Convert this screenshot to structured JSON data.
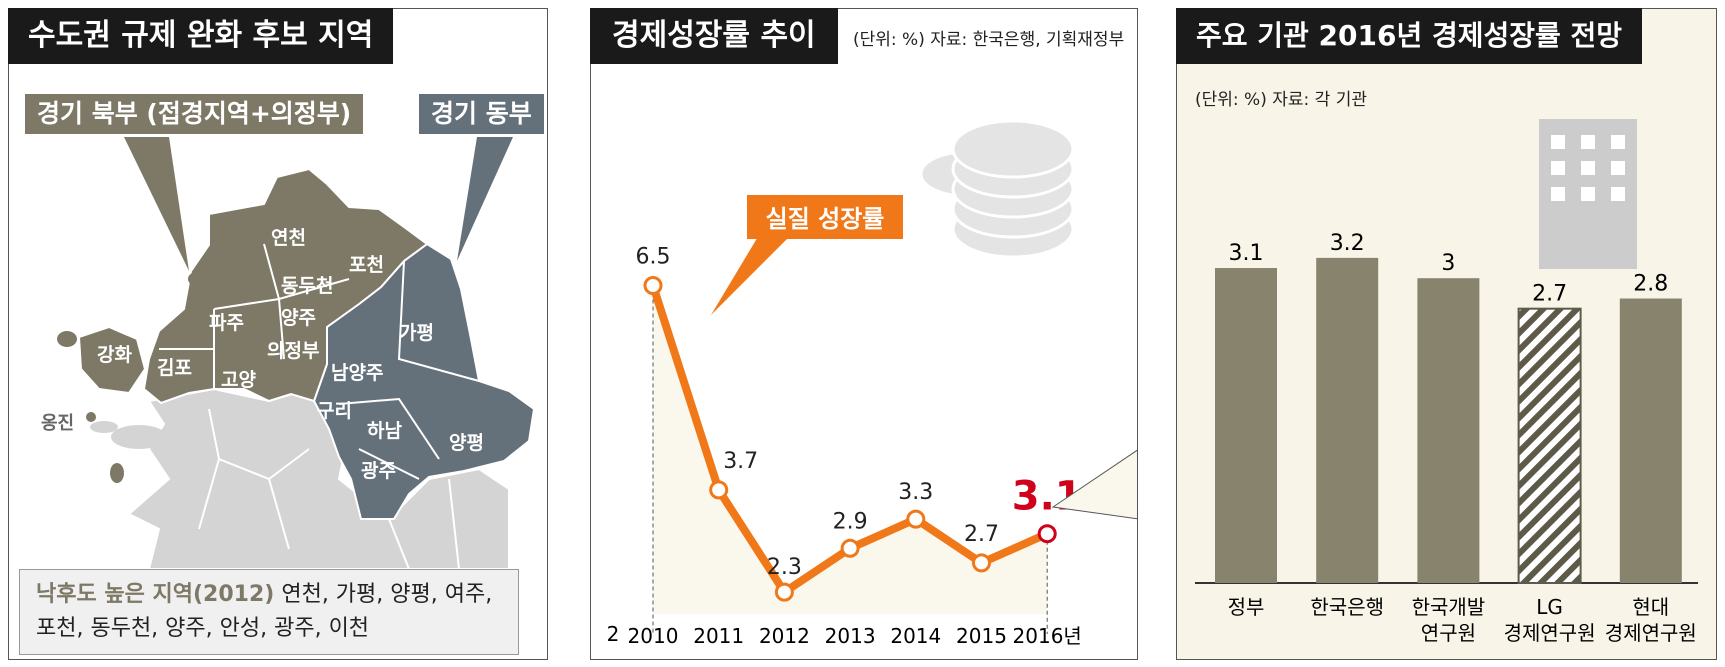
{
  "map_panel": {
    "title": "수도권 규제 완화 후보 지역",
    "tag_north": "경기 북부 (접경지역+의정부)",
    "tag_east": "경기 동부",
    "places": {
      "yeoncheon": "연천",
      "pocheon": "포천",
      "dongducheon": "동두천",
      "paju": "파주",
      "yangju": "양주",
      "uijeongbu": "의정부",
      "ganghwa": "강화",
      "gimpo": "김포",
      "goyang": "고양",
      "ongjin": "옹진",
      "gapyeong": "가평",
      "namyangju": "남양주",
      "guri": "구리",
      "hanam": "하남",
      "yangpyeong": "양평",
      "gwangju": "광주"
    },
    "footnote_label": "낙후도 높은 지역(2012)",
    "footnote_line1": " 연천, 가평, 양평, 여주,",
    "footnote_line2": "포천, 동두천, 양주, 안성, 광주, 이천",
    "colors": {
      "north": "#7d7966",
      "east": "#64717b",
      "other": "#d4d4d4"
    }
  },
  "line_panel": {
    "title": "경제성장률 추이",
    "source": "(단위: %)  자료: 한국은행, 기획재정부",
    "series_label": "실질 성장률",
    "y_tick": "2",
    "last_label": "3.1"
  },
  "bar_panel": {
    "title": "주요 기관 2016년 경제성장률 전망",
    "source": "(단위: %)  자료: 각 기관"
  },
  "chart_data": [
    {
      "type": "line",
      "title": "경제성장률 추이",
      "x": [
        "2010",
        "2011",
        "2012",
        "2013",
        "2014",
        "2015",
        "2016년"
      ],
      "series": [
        {
          "name": "실질 성장률",
          "values": [
            6.5,
            3.7,
            2.3,
            2.9,
            3.3,
            2.7,
            3.1
          ]
        }
      ],
      "y_ticks": [
        "2"
      ],
      "grid": false,
      "color": "#f07819"
    },
    {
      "type": "bar",
      "title": "주요 기관 2016년 경제성장률 전망",
      "categories": [
        "정부",
        "한국은행",
        "한국개발\n연구원",
        "LG\n경제연구원",
        "현대\n경제연구원"
      ],
      "values": [
        3.1,
        3.2,
        3.0,
        2.7,
        2.8
      ],
      "value_labels": [
        "3.1",
        "3.2",
        "3",
        "2.7",
        "2.8"
      ],
      "hatched": "LG\n경제연구원",
      "grid": false,
      "color": "#87836d"
    }
  ]
}
